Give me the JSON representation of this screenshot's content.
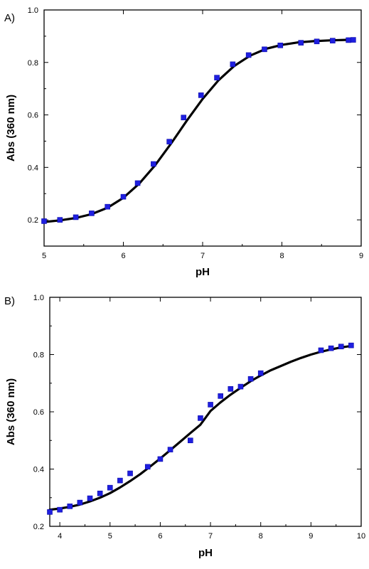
{
  "chart_data": [
    {
      "type": "scatter",
      "panel_label": "A)",
      "xlabel": "pH",
      "ylabel": "Abs (360 nm)",
      "xlim": [
        5,
        9
      ],
      "ylim": [
        0.1,
        1.0
      ],
      "xticks": [
        5,
        6,
        7,
        8,
        9
      ],
      "yticks": [
        0.2,
        0.4,
        0.6,
        0.8,
        1.0
      ],
      "xtick_labels": [
        "5",
        "6",
        "7",
        "8",
        "9"
      ],
      "ytick_labels": [
        "0.2",
        "0.4",
        "0.6",
        "0.8",
        "1.0"
      ],
      "grid": false,
      "series": [
        {
          "kind": "points",
          "color": "#1f1fe0",
          "x": [
            5.0,
            5.2,
            5.4,
            5.6,
            5.8,
            6.0,
            6.18,
            6.38,
            6.58,
            6.76,
            6.98,
            7.18,
            7.38,
            7.58,
            7.78,
            7.98,
            8.24,
            8.44,
            8.64,
            8.84,
            8.9
          ],
          "y": [
            0.195,
            0.2,
            0.21,
            0.225,
            0.25,
            0.288,
            0.34,
            0.413,
            0.498,
            0.59,
            0.675,
            0.742,
            0.793,
            0.828,
            0.85,
            0.865,
            0.875,
            0.88,
            0.883,
            0.885,
            0.886
          ]
        },
        {
          "kind": "fit",
          "color": "#000000",
          "x": [
            5.0,
            5.2,
            5.4,
            5.6,
            5.8,
            6.0,
            6.2,
            6.4,
            6.6,
            6.8,
            7.0,
            7.2,
            7.4,
            7.6,
            7.8,
            8.0,
            8.2,
            8.4,
            8.6,
            8.8,
            8.9
          ],
          "y": [
            0.192,
            0.198,
            0.207,
            0.222,
            0.246,
            0.284,
            0.338,
            0.408,
            0.49,
            0.578,
            0.661,
            0.732,
            0.787,
            0.826,
            0.852,
            0.867,
            0.876,
            0.881,
            0.884,
            0.886,
            0.886
          ]
        }
      ]
    },
    {
      "type": "scatter",
      "panel_label": "B)",
      "xlabel": "pH",
      "ylabel": "Abs (360 nm)",
      "xlim": [
        3.8,
        10
      ],
      "ylim": [
        0.2,
        1.0
      ],
      "xticks": [
        4,
        5,
        6,
        7,
        8,
        9,
        10
      ],
      "yticks": [
        0.2,
        0.4,
        0.6,
        0.8,
        1.0
      ],
      "xtick_labels": [
        "4",
        "5",
        "6",
        "7",
        "8",
        "9",
        "10"
      ],
      "ytick_labels": [
        "0.2",
        "0.4",
        "0.6",
        "0.8",
        "1.0"
      ],
      "grid": false,
      "series": [
        {
          "kind": "points",
          "color": "#1f1fe0",
          "x": [
            3.8,
            4.0,
            4.2,
            4.4,
            4.6,
            4.8,
            5.0,
            5.2,
            5.4,
            5.75,
            6.0,
            6.2,
            6.6,
            6.8,
            7.0,
            7.2,
            7.4,
            7.6,
            7.8,
            8.0,
            9.2,
            9.4,
            9.6,
            9.8
          ],
          "y": [
            0.25,
            0.258,
            0.27,
            0.283,
            0.298,
            0.315,
            0.335,
            0.36,
            0.385,
            0.408,
            0.435,
            0.468,
            0.5,
            0.578,
            0.625,
            0.655,
            0.68,
            0.688,
            0.715,
            0.735,
            0.815,
            0.822,
            0.828,
            0.832
          ]
        },
        {
          "kind": "fit",
          "color": "#000000",
          "x": [
            3.8,
            4.0,
            4.2,
            4.4,
            4.6,
            4.8,
            5.0,
            5.2,
            5.4,
            5.6,
            5.8,
            6.0,
            6.2,
            6.4,
            6.6,
            6.8,
            7.0,
            7.2,
            7.4,
            7.6,
            7.8,
            8.0,
            8.2,
            8.4,
            8.6,
            8.8,
            9.0,
            9.2,
            9.4,
            9.6,
            9.8
          ],
          "y": [
            0.258,
            0.262,
            0.268,
            0.276,
            0.287,
            0.3,
            0.316,
            0.336,
            0.358,
            0.382,
            0.409,
            0.437,
            0.466,
            0.496,
            0.526,
            0.555,
            0.603,
            0.633,
            0.66,
            0.684,
            0.707,
            0.727,
            0.745,
            0.76,
            0.775,
            0.788,
            0.8,
            0.81,
            0.818,
            0.825,
            0.83
          ]
        }
      ]
    }
  ]
}
